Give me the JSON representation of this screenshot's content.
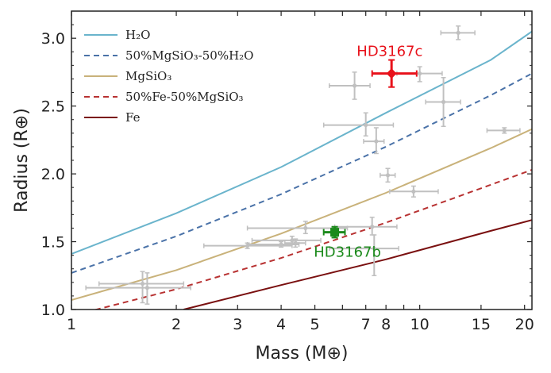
{
  "chart_data": {
    "type": "scatter",
    "title": "",
    "xlabel": "Mass (M⊕)",
    "ylabel": "Radius (R⊕)",
    "xscale": "log",
    "xlim": [
      1,
      21
    ],
    "ylim": [
      1.0,
      3.2
    ],
    "xticks": [
      1,
      2,
      3,
      4,
      5,
      6,
      7,
      8,
      9,
      10,
      15,
      20
    ],
    "xtick_labels": [
      "1",
      "2",
      "3",
      "4",
      "5",
      "",
      "7",
      "8",
      "",
      "10",
      "15",
      "20"
    ],
    "yticks": [
      1.0,
      1.5,
      2.0,
      2.5,
      3.0
    ],
    "ytick_labels": [
      "1.0",
      "1.5",
      "2.0",
      "2.5",
      "3.0"
    ],
    "grid": false,
    "legend_position": "top-left",
    "series": [
      {
        "name": "H₂O",
        "color": "#6ab4cc",
        "dash": "solid",
        "x": [
          1,
          2,
          4,
          8,
          16,
          21
        ],
        "y": [
          1.41,
          1.71,
          2.05,
          2.45,
          2.84,
          3.05
        ]
      },
      {
        "name": "50%MgSiO₃-50%H₂O",
        "color": "#4a72a8",
        "dash": "dashed",
        "x": [
          1,
          2,
          4,
          8,
          16,
          21
        ],
        "y": [
          1.27,
          1.54,
          1.85,
          2.2,
          2.58,
          2.74
        ]
      },
      {
        "name": "MgSiO₃",
        "color": "#c9b27a",
        "dash": "solid",
        "x": [
          1,
          2,
          4,
          8,
          16,
          21
        ],
        "y": [
          1.07,
          1.29,
          1.56,
          1.86,
          2.19,
          2.33
        ]
      },
      {
        "name": "50%Fe-50%MgSiO₃",
        "color": "#b83232",
        "dash": "dashed",
        "x": [
          1.1,
          2,
          4,
          8,
          16,
          21
        ],
        "y": [
          0.98,
          1.15,
          1.38,
          1.64,
          1.92,
          2.03
        ]
      },
      {
        "name": "Fe",
        "color": "#7a1010",
        "dash": "solid",
        "x": [
          2.1,
          4,
          8,
          16,
          21
        ],
        "y": [
          1.0,
          1.18,
          1.37,
          1.58,
          1.66
        ]
      }
    ],
    "comparison_planets": {
      "color": "#c0c0c0",
      "points": [
        {
          "x": 1.6,
          "y": 1.19,
          "xerr": [
            1.2,
            2.1
          ],
          "yerr": [
            1.05,
            1.28
          ]
        },
        {
          "x": 1.65,
          "y": 1.16,
          "xerr": [
            1.1,
            2.2
          ],
          "yerr": [
            1.04,
            1.27
          ]
        },
        {
          "x": 3.2,
          "y": 1.47,
          "xerr": [
            2.4,
            4.3
          ],
          "yerr": [
            1.45,
            1.49
          ]
        },
        {
          "x": 4.0,
          "y": 1.48,
          "xerr": [
            3.2,
            4.5
          ],
          "yerr": [
            1.46,
            1.5
          ]
        },
        {
          "x": 4.3,
          "y": 1.51,
          "xerr": [
            3.3,
            5.2
          ],
          "yerr": [
            1.48,
            1.54
          ]
        },
        {
          "x": 4.4,
          "y": 1.49,
          "xerr": [
            4.1,
            4.7
          ],
          "yerr": [
            1.46,
            1.52
          ]
        },
        {
          "x": 4.7,
          "y": 1.6,
          "xerr": [
            3.2,
            6.2
          ],
          "yerr": [
            1.56,
            1.65
          ]
        },
        {
          "x": 6.5,
          "y": 2.65,
          "xerr": [
            5.5,
            7.2
          ],
          "yerr": [
            2.55,
            2.75
          ]
        },
        {
          "x": 7.0,
          "y": 2.36,
          "xerr": [
            5.3,
            8.4
          ],
          "yerr": [
            2.28,
            2.45
          ]
        },
        {
          "x": 7.3,
          "y": 1.61,
          "xerr": [
            5.7,
            8.6
          ],
          "yerr": [
            1.55,
            1.68
          ]
        },
        {
          "x": 7.4,
          "y": 1.45,
          "xerr": [
            5.5,
            8.7
          ],
          "yerr": [
            1.25,
            1.55
          ]
        },
        {
          "x": 7.5,
          "y": 2.24,
          "xerr": [
            6.9,
            7.9
          ],
          "yerr": [
            2.15,
            2.34
          ]
        },
        {
          "x": 8.1,
          "y": 1.99,
          "xerr": [
            7.7,
            8.5
          ],
          "yerr": [
            1.94,
            2.04
          ]
        },
        {
          "x": 9.6,
          "y": 1.87,
          "xerr": [
            8.2,
            11.3
          ],
          "yerr": [
            1.83,
            1.91
          ]
        },
        {
          "x": 10.0,
          "y": 2.74,
          "xerr": [
            8.6,
            11.6
          ],
          "yerr": [
            2.68,
            2.79
          ]
        },
        {
          "x": 11.7,
          "y": 2.53,
          "xerr": [
            10.4,
            13.1
          ],
          "yerr": [
            2.35,
            2.71
          ]
        },
        {
          "x": 12.9,
          "y": 3.04,
          "xerr": [
            11.5,
            14.4
          ],
          "yerr": [
            2.99,
            3.09
          ]
        },
        {
          "x": 17.5,
          "y": 2.32,
          "xerr": [
            15.6,
            19.4
          ],
          "yerr": [
            2.3,
            2.34
          ]
        }
      ]
    },
    "highlighted": [
      {
        "name": "HD3167c",
        "label": "HD3167c",
        "color": "#e8121b",
        "x": 8.3,
        "y": 2.74,
        "xerr": [
          7.3,
          9.8
        ],
        "yerr": [
          2.64,
          2.84
        ],
        "label_x": 8.2,
        "label_y": 2.87
      },
      {
        "name": "HD3167b",
        "label": "HD3167b",
        "color": "#1b8a1b",
        "x": 5.7,
        "y": 1.57,
        "xerr": [
          5.3,
          6.1
        ],
        "yerr": [
          1.53,
          1.61
        ],
        "label_x": 6.2,
        "label_y": 1.39
      }
    ]
  }
}
